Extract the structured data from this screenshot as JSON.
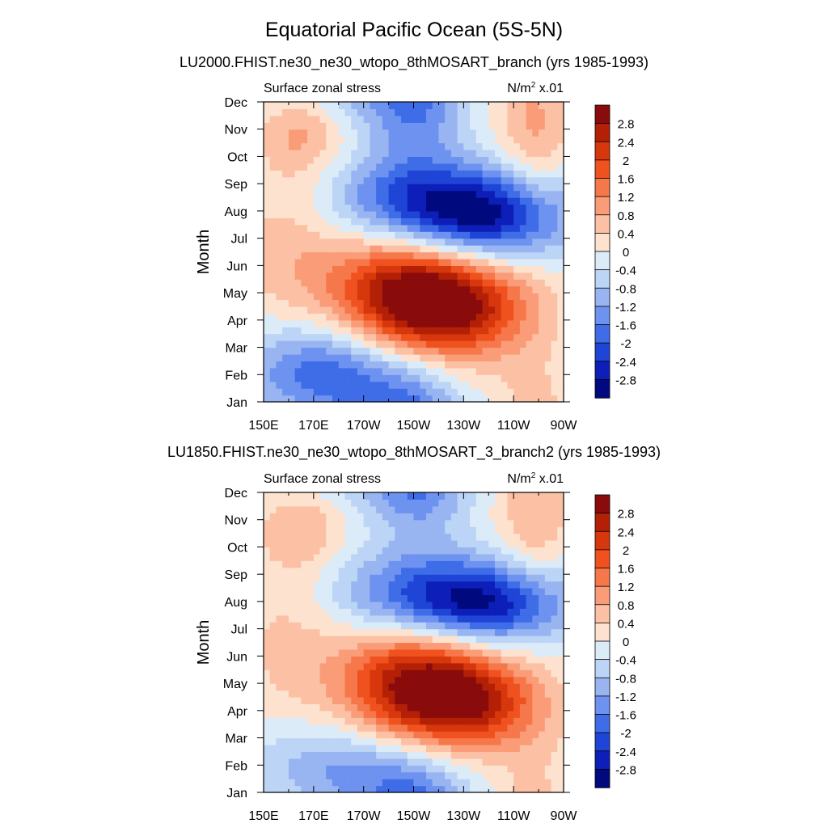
{
  "figure": {
    "title": "Equatorial Pacific Ocean (5S-5N)"
  },
  "panels": [
    {
      "title": "LU2000.FHIST.ne30_ne30_wtopo_8thMOSART_branch (yrs 1985-1993)"
    },
    {
      "title": "LU1850.FHIST.ne30_ne30_wtopo_8thMOSART_3_branch2 (yrs 1985-1993)"
    }
  ],
  "chart_data": [
    {
      "type": "heatmap",
      "subtitle_left": "Surface zonal stress",
      "units_base": "N/m",
      "units_sup": "2",
      "units_scale": "x.01",
      "ylabel": "Month",
      "xlim": [
        150,
        270
      ],
      "x_ticks": [
        {
          "value": 150,
          "label": "150E"
        },
        {
          "value": 170,
          "label": "170E"
        },
        {
          "value": 190,
          "label": "170W"
        },
        {
          "value": 210,
          "label": "150W"
        },
        {
          "value": 230,
          "label": "130W"
        },
        {
          "value": 250,
          "label": "110W"
        },
        {
          "value": 270,
          "label": "90W"
        }
      ],
      "y_ticks": [
        "Jan",
        "Feb",
        "Mar",
        "Apr",
        "May",
        "Jun",
        "Jul",
        "Aug",
        "Sep",
        "Oct",
        "Nov",
        "Dec"
      ],
      "colorbar_levels": [
        "2.8",
        "2.4",
        "2",
        "1.6",
        "1.2",
        "0.8",
        "0.4",
        "0",
        "-0.4",
        "-0.8",
        "-1.2",
        "-1.6",
        "-2",
        "-2.4",
        "-2.8"
      ],
      "colors": [
        "#8a0b0b",
        "#b32006",
        "#d7370c",
        "#f0521f",
        "#f6784a",
        "#fa9c78",
        "#fcc1a4",
        "#fde2cf",
        "#dcebf8",
        "#bcd4f6",
        "#98b5f2",
        "#6d92ef",
        "#3f6de8",
        "#1f45d7",
        "#0d1fb8",
        "#000a7e"
      ],
      "features": [
        {
          "lon": 207,
          "month": 3.9,
          "amp": 3.0,
          "slon": 22,
          "smon": 1.6
        },
        {
          "lon": 232,
          "month": 3.5,
          "amp": 1.8,
          "slon": 20,
          "smon": 1.3
        },
        {
          "lon": 236,
          "month": 6.8,
          "amp": -3.0,
          "slon": 26,
          "smon": 1.2
        },
        {
          "lon": 205,
          "month": 7.6,
          "amp": -1.2,
          "slon": 24,
          "smon": 1.1
        },
        {
          "lon": 177,
          "month": 1.0,
          "amp": -2.1,
          "slon": 24,
          "smon": 1.4
        },
        {
          "lon": 210,
          "month": 11.0,
          "amp": -1.6,
          "slon": 14,
          "smon": 1.6
        },
        {
          "lon": 165,
          "month": 10.0,
          "amp": 1.0,
          "slon": 12,
          "smon": 1.2
        },
        {
          "lon": 258,
          "month": 10.0,
          "amp": 0.9,
          "slon": 10,
          "smon": 2.2
        },
        {
          "lon": 160,
          "month": 5.6,
          "amp": 0.6,
          "slon": 15,
          "smon": 2.0
        }
      ]
    },
    {
      "type": "heatmap",
      "subtitle_left": "Surface zonal stress",
      "units_base": "N/m",
      "units_sup": "2",
      "units_scale": "x.01",
      "ylabel": "Month",
      "xlim": [
        150,
        270
      ],
      "x_ticks": [
        {
          "value": 150,
          "label": "150E"
        },
        {
          "value": 170,
          "label": "170E"
        },
        {
          "value": 190,
          "label": "170W"
        },
        {
          "value": 210,
          "label": "150W"
        },
        {
          "value": 230,
          "label": "130W"
        },
        {
          "value": 250,
          "label": "110W"
        },
        {
          "value": 270,
          "label": "90W"
        }
      ],
      "y_ticks": [
        "Jan",
        "Feb",
        "Mar",
        "Apr",
        "May",
        "Jun",
        "Jul",
        "Aug",
        "Sep",
        "Oct",
        "Nov",
        "Dec"
      ],
      "colorbar_levels": [
        "2.8",
        "2.4",
        "2",
        "1.6",
        "1.2",
        "0.8",
        "0.4",
        "0",
        "-0.4",
        "-0.8",
        "-1.2",
        "-1.6",
        "-2",
        "-2.4",
        "-2.8"
      ],
      "colors": [
        "#8a0b0b",
        "#b32006",
        "#d7370c",
        "#f0521f",
        "#f6784a",
        "#fa9c78",
        "#fcc1a4",
        "#fde2cf",
        "#dcebf8",
        "#bcd4f6",
        "#98b5f2",
        "#6d92ef",
        "#3f6de8",
        "#1f45d7",
        "#0d1fb8",
        "#000a7e"
      ],
      "features": [
        {
          "lon": 212,
          "month": 3.9,
          "amp": 2.9,
          "slon": 22,
          "smon": 1.5
        },
        {
          "lon": 236,
          "month": 3.2,
          "amp": 1.7,
          "slon": 20,
          "smon": 1.2
        },
        {
          "lon": 240,
          "month": 6.9,
          "amp": -2.6,
          "slon": 24,
          "smon": 1.1
        },
        {
          "lon": 208,
          "month": 7.4,
          "amp": -1.3,
          "slon": 24,
          "smon": 1.1
        },
        {
          "lon": 185,
          "month": 0.8,
          "amp": -1.4,
          "slon": 26,
          "smon": 1.3
        },
        {
          "lon": 212,
          "month": 11.2,
          "amp": -1.4,
          "slon": 14,
          "smon": 1.4
        },
        {
          "lon": 165,
          "month": 9.8,
          "amp": 0.8,
          "slon": 12,
          "smon": 1.2
        },
        {
          "lon": 258,
          "month": 10.0,
          "amp": 0.8,
          "slon": 10,
          "smon": 2.2
        },
        {
          "lon": 160,
          "month": 5.6,
          "amp": 0.5,
          "slon": 15,
          "smon": 2.0
        }
      ]
    }
  ]
}
